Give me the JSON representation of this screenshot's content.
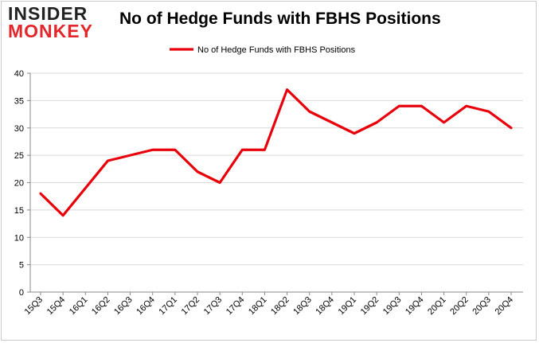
{
  "logo": {
    "line1": "INSIDER",
    "line2": "MONKEY"
  },
  "chart_data": {
    "type": "line",
    "title": "No of Hedge Funds with FBHS Positions",
    "xlabel": "",
    "ylabel": "",
    "categories": [
      "15Q3",
      "15Q4",
      "16Q1",
      "16Q2",
      "16Q3",
      "16Q4",
      "17Q1",
      "17Q2",
      "17Q3",
      "17Q4",
      "18Q1",
      "18Q2",
      "18Q3",
      "18Q4",
      "19Q1",
      "19Q2",
      "19Q3",
      "19Q4",
      "20Q1",
      "20Q2",
      "20Q3",
      "20Q4"
    ],
    "series": [
      {
        "name": "No of Hedge Funds with FBHS Positions",
        "values": [
          18,
          14,
          19,
          24,
          25,
          26,
          26,
          22,
          20,
          26,
          26,
          37,
          33,
          31,
          29,
          31,
          34,
          34,
          31,
          34,
          33,
          30
        ],
        "color": "#e8000b"
      }
    ],
    "ylim": [
      0,
      40
    ],
    "yticks": [
      0,
      5,
      10,
      15,
      20,
      25,
      30,
      35,
      40
    ],
    "grid": "horizontal",
    "legend": "top-center"
  }
}
